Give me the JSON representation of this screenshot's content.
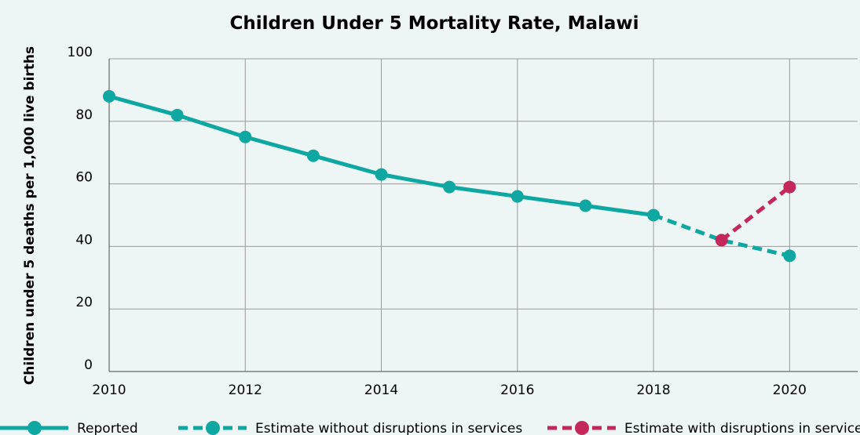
{
  "chart_data": {
    "type": "line",
    "title": "Children Under 5 Mortality Rate, Malawi",
    "xlabel": "",
    "ylabel": "Children under 5 deaths per 1,000 live births",
    "xlim": [
      2010,
      2021
    ],
    "ylim": [
      0,
      100
    ],
    "x_ticks": [
      "2010",
      "2012",
      "2014",
      "2016",
      "2018",
      "2020"
    ],
    "y_ticks": [
      "0",
      "20",
      "40",
      "60",
      "80",
      "100"
    ],
    "grid": true,
    "legend_position": "bottom",
    "series": [
      {
        "name": "Reported",
        "color": "#0fa7a1",
        "style": "solid",
        "x": [
          2010,
          2011,
          2012,
          2013,
          2014,
          2015,
          2016,
          2017,
          2018
        ],
        "values": [
          88,
          82,
          75,
          69,
          63,
          59,
          56,
          53,
          50
        ]
      },
      {
        "name": "Estimate without disruptions in services",
        "color": "#0fa7a1",
        "style": "dashed",
        "x": [
          2018,
          2019,
          2020
        ],
        "values": [
          50,
          42,
          37
        ],
        "markers": [
          false,
          false,
          true
        ]
      },
      {
        "name": "Estimate with disruptions in services",
        "color": "#c4285a",
        "style": "dashed",
        "x": [
          2019,
          2020
        ],
        "values": [
          42,
          59
        ],
        "markers": [
          true,
          true
        ]
      }
    ]
  }
}
